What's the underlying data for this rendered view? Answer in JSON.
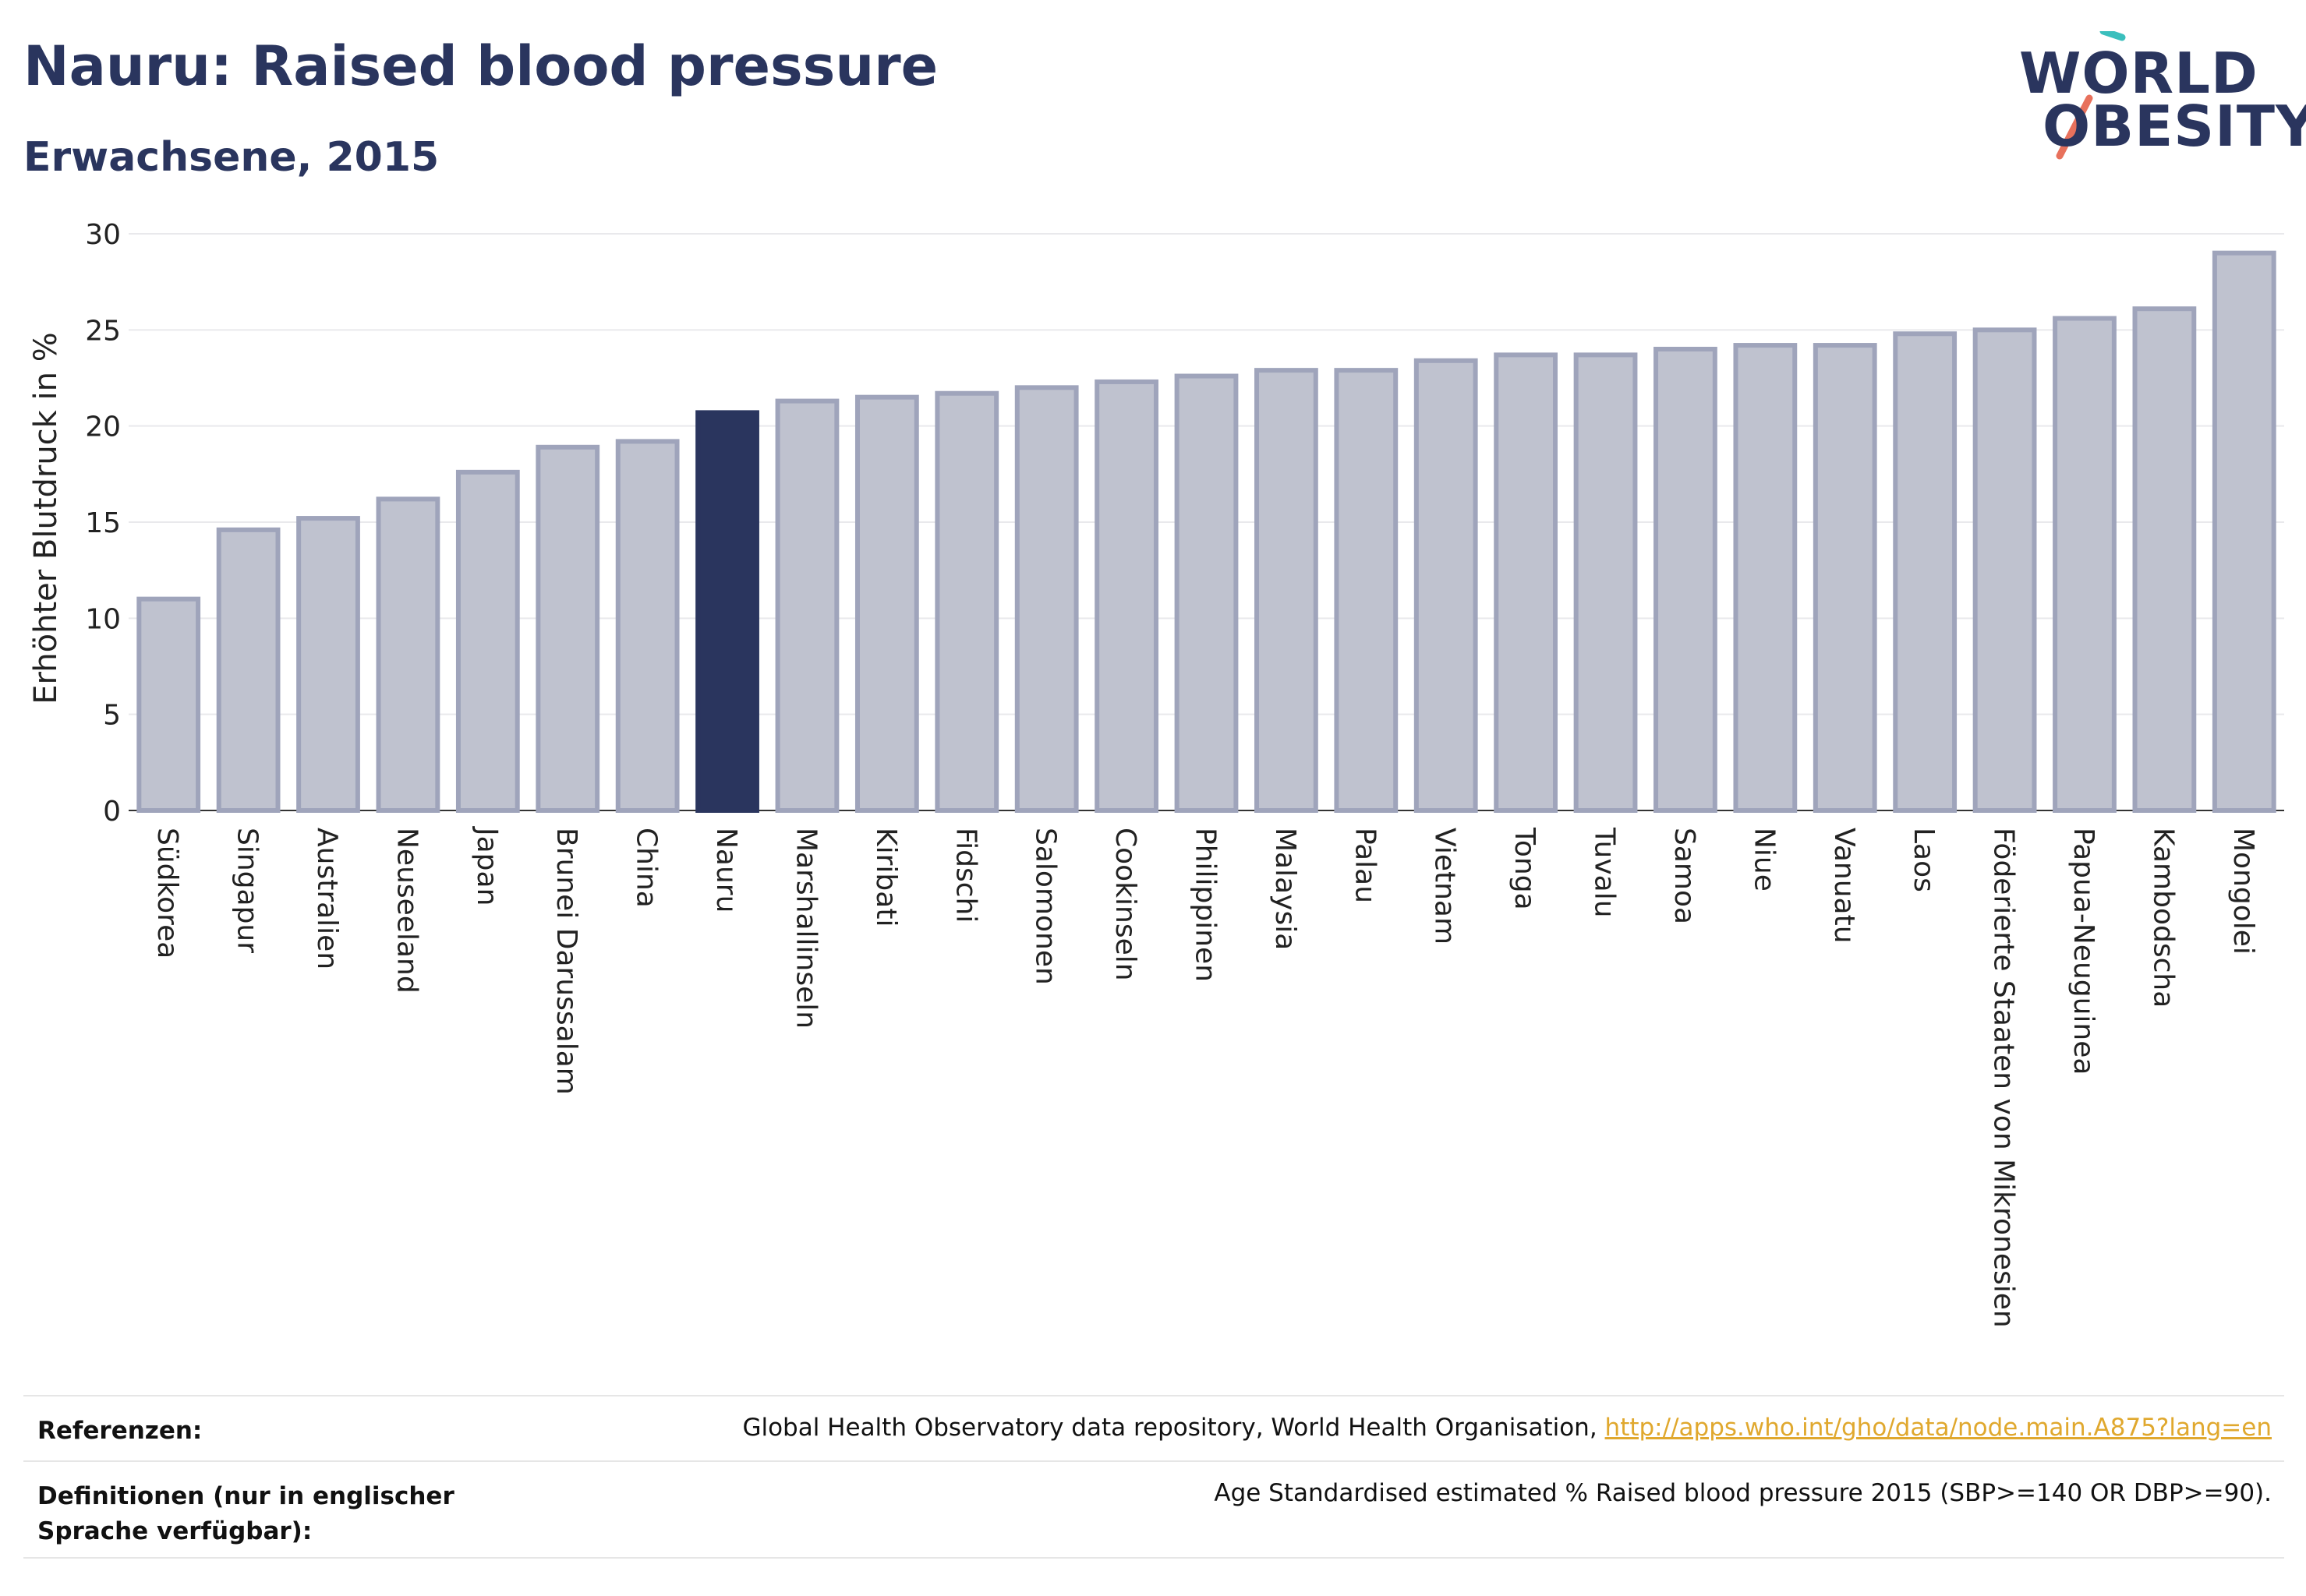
{
  "header": {
    "title": "Nauru: Raised blood pressure",
    "subtitle": "Erwachsene, 2015"
  },
  "logo": {
    "line1": "WORLD",
    "line2": "OBESITY"
  },
  "colors": {
    "highlight": "#2a355e",
    "bar_fill": "#bfc2cf",
    "bar_stroke": "#9fa4bb",
    "logo_teal": "#3bbfbd",
    "logo_coral": "#e8715c",
    "link": "#e0a82e"
  },
  "chart_data": {
    "type": "bar",
    "ylabel": "Erhöhter Blutdruck in %",
    "ylim": [
      0,
      30
    ],
    "yticks": [
      0,
      5,
      10,
      15,
      20,
      25,
      30
    ],
    "grid": true,
    "highlight": "Nauru",
    "categories": [
      "Südkorea",
      "Singapur",
      "Australien",
      "Neuseeland",
      "Japan",
      "Brunei Darussalam",
      "China",
      "Nauru",
      "Marshallinseln",
      "Kiribati",
      "Fidschi",
      "Salomonen",
      "Cookinseln",
      "Philippinen",
      "Malaysia",
      "Palau",
      "Vietnam",
      "Tonga",
      "Tuvalu",
      "Samoa",
      "Niue",
      "Vanuatu",
      "Laos",
      "Föderierte Staaten von Mikronesien",
      "Papua-Neuguinea",
      "Kambodscha",
      "Mongolei"
    ],
    "values": [
      11.0,
      14.6,
      15.2,
      16.2,
      17.6,
      18.9,
      19.2,
      20.7,
      21.3,
      21.5,
      21.7,
      22.0,
      22.3,
      22.6,
      22.9,
      22.9,
      23.4,
      23.7,
      23.7,
      24.0,
      24.2,
      24.2,
      24.8,
      25.0,
      25.6,
      26.1,
      29.0
    ]
  },
  "footer": {
    "references_label": "Referenzen:",
    "references_text": "Global Health Observatory data repository, World Health Organisation,",
    "references_link": "http://apps.who.int/gho/data/node.main.A875?lang=en",
    "definitions_label": "Definitionen (nur in englischer Sprache verfügbar):",
    "definitions_text": "Age Standardised estimated % Raised blood pressure 2015 (SBP>=140 OR DBP>=90)."
  }
}
